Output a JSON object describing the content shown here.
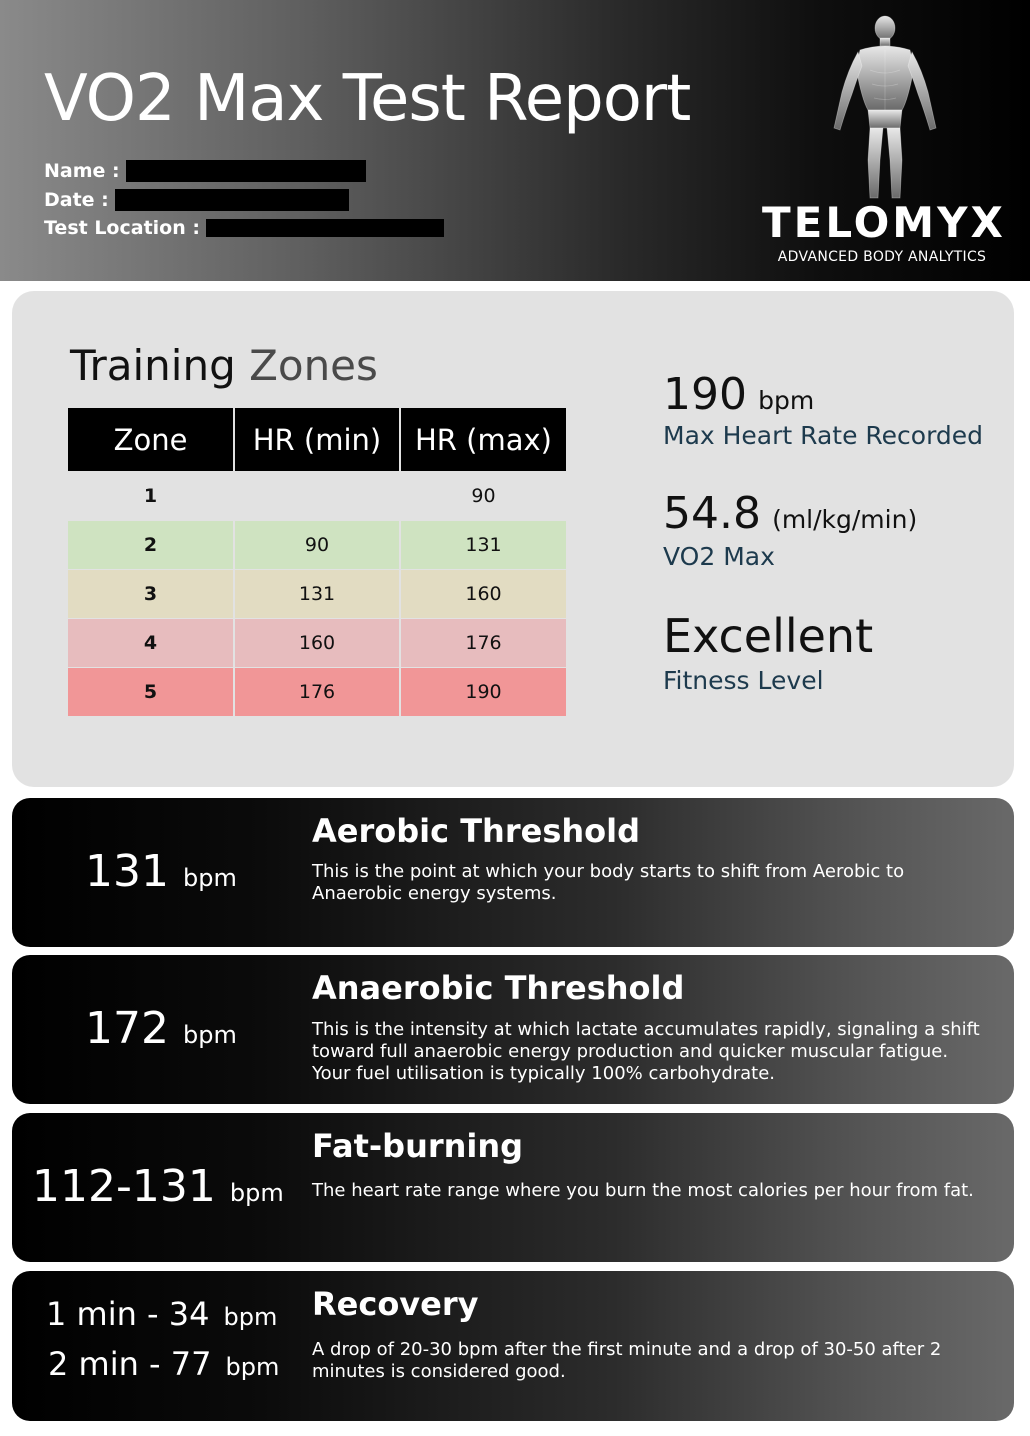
{
  "header": {
    "title": "VO2 Max Test Report",
    "name_label": "Name :",
    "date_label": "Date :",
    "location_label": "Test Location :",
    "brand_name": "TELOMYX",
    "brand_tagline": "ADVANCED BODY ANALYTICS"
  },
  "zones": {
    "heading_word1": "Training",
    "heading_word2": "Zones",
    "columns": [
      "Zone",
      "HR (min)",
      "HR (max)"
    ],
    "rows": [
      {
        "zone": "1",
        "min": "",
        "max": "90",
        "color": "#e2e2e2"
      },
      {
        "zone": "2",
        "min": "90",
        "max": "131",
        "color": "#cfe3c1"
      },
      {
        "zone": "3",
        "min": "131",
        "max": "160",
        "color": "#e2dcc2"
      },
      {
        "zone": "4",
        "min": "160",
        "max": "176",
        "color": "#e7bcbe"
      },
      {
        "zone": "5",
        "min": "176",
        "max": "190",
        "color": "#f19697"
      }
    ]
  },
  "stats": {
    "max_hr": {
      "value": "190",
      "unit": "bpm",
      "label": "Max Heart Rate Recorded"
    },
    "vo2": {
      "value": "54.8",
      "unit": "(ml/kg/min)",
      "label": "VO2 Max"
    },
    "fitness": {
      "value": "Excellent",
      "label": "Fitness Level"
    }
  },
  "aerobic": {
    "value": "131",
    "unit": "bpm",
    "title": "Aerobic Threshold",
    "description": "This is the point at which your body starts to shift from Aerobic to Anaerobic energy systems."
  },
  "anaerobic": {
    "value": "172",
    "unit": "bpm",
    "title": "Anaerobic Threshold",
    "description": "This is the intensity at which lactate accumulates rapidly, signaling a shift toward full anaerobic energy production and quicker muscular fatigue.  Your fuel utilisation is typically 100% carbohydrate."
  },
  "fat_burning": {
    "value": "112-131",
    "unit": "bpm",
    "title": "Fat-burning",
    "description": "The heart rate range where you burn the most calories per hour from fat."
  },
  "recovery": {
    "line1": "1 min - 34",
    "line2": "2 min - 77",
    "unit": "bpm",
    "title": "Recovery",
    "description": "A drop of 20-30 bpm after the first minute and a drop of 30-50 after 2 minutes is considered good."
  },
  "icons": {
    "figure": "human-anatomy-figure"
  }
}
